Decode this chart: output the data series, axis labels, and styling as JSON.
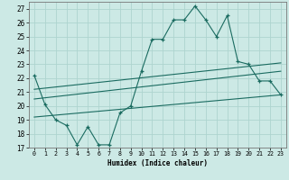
{
  "xlabel": "Humidex (Indice chaleur)",
  "bg_color": "#cce9e5",
  "grid_color": "#aed4cf",
  "line_color": "#1a6b60",
  "xlim": [
    -0.5,
    23.5
  ],
  "ylim": [
    17,
    27.5
  ],
  "xticks": [
    0,
    1,
    2,
    3,
    4,
    5,
    6,
    7,
    8,
    9,
    10,
    11,
    12,
    13,
    14,
    15,
    16,
    17,
    18,
    19,
    20,
    21,
    22,
    23
  ],
  "yticks": [
    17,
    18,
    19,
    20,
    21,
    22,
    23,
    24,
    25,
    26,
    27
  ],
  "main_line_x": [
    0,
    1,
    2,
    3,
    4,
    5,
    6,
    7,
    8,
    9,
    10,
    11,
    12,
    13,
    14,
    15,
    16,
    17,
    18,
    19,
    20,
    21,
    22,
    23
  ],
  "main_line_y": [
    22.2,
    20.1,
    19.0,
    18.6,
    17.2,
    18.5,
    17.2,
    17.2,
    19.5,
    20.0,
    22.5,
    24.8,
    24.8,
    26.2,
    26.2,
    27.2,
    26.2,
    25.0,
    26.5,
    23.2,
    23.0,
    21.8,
    21.8,
    20.8
  ],
  "trend1_x": [
    0,
    23
  ],
  "trend1_y": [
    21.2,
    23.1
  ],
  "trend2_x": [
    0,
    23
  ],
  "trend2_y": [
    20.5,
    22.5
  ],
  "trend3_x": [
    0,
    23
  ],
  "trend3_y": [
    19.2,
    20.8
  ]
}
